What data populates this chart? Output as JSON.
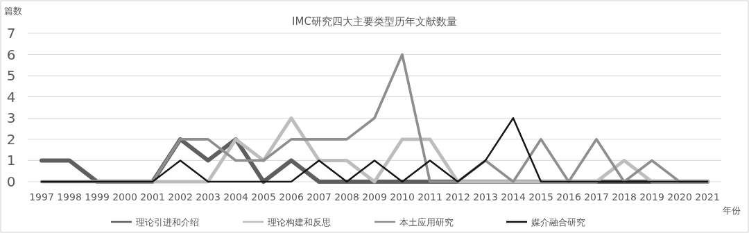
{
  "chart_data": {
    "type": "line",
    "title": "IMC研究四大主要类型历年文献数量",
    "ylabel": "篇数",
    "xlabel": "年份",
    "categories": [
      "1997",
      "1998",
      "1999",
      "2000",
      "2001",
      "2002",
      "2003",
      "2004",
      "2005",
      "2006",
      "2007",
      "2008",
      "2009",
      "2010",
      "2011",
      "2012",
      "2013",
      "2014",
      "2015",
      "2016",
      "2017",
      "2018",
      "2019",
      "2020",
      "2021"
    ],
    "series": [
      {
        "name": "理论引进和介绍",
        "color": "#5f5f5f",
        "values": [
          1,
          1,
          0,
          0,
          0,
          2,
          1,
          2,
          0,
          1,
          0,
          0,
          0,
          0,
          0,
          0,
          0,
          0,
          0,
          0,
          0,
          0,
          0,
          0,
          0
        ]
      },
      {
        "name": "理论构建和反思",
        "color": "#bdbdbd",
        "values": [
          0,
          0,
          0,
          0,
          0,
          0,
          0,
          2,
          1,
          3,
          1,
          1,
          0,
          2,
          2,
          0,
          0,
          0,
          0,
          0,
          0,
          1,
          0,
          0,
          0
        ]
      },
      {
        "name": "本土应用研究",
        "color": "#8e8e8e",
        "values": [
          0,
          0,
          0,
          0,
          0,
          2,
          2,
          1,
          1,
          2,
          2,
          2,
          3,
          6,
          0,
          0,
          1,
          0,
          2,
          0,
          2,
          0,
          1,
          0,
          0
        ]
      },
      {
        "name": "媒介融合研究",
        "color": "#151515",
        "values": [
          0,
          0,
          0,
          0,
          0,
          1,
          0,
          0,
          0,
          0,
          1,
          0,
          1,
          0,
          1,
          0,
          1,
          3,
          0,
          0,
          0,
          0,
          0,
          0,
          0
        ]
      }
    ],
    "ylim": [
      0,
      7
    ],
    "yticks": [
      0,
      1,
      2,
      3,
      4,
      5,
      6,
      7
    ],
    "grid": "y",
    "legend": "bottom",
    "marker": "none",
    "line_style": "solid"
  }
}
